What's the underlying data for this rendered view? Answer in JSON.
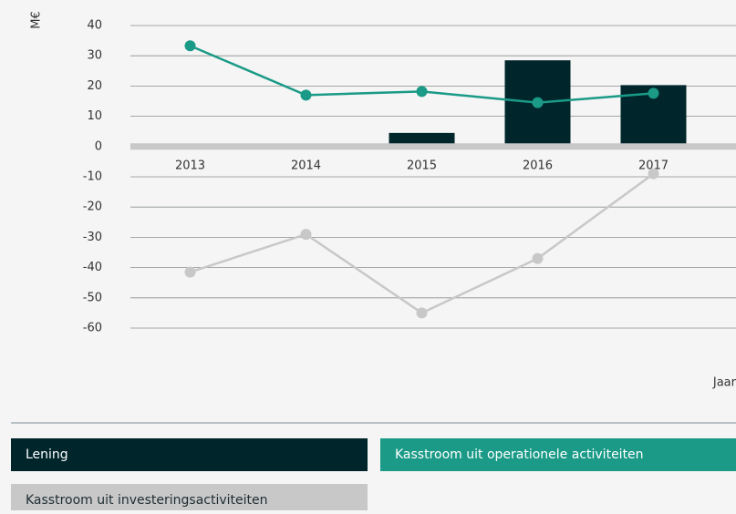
{
  "chart_data": {
    "type": "combo",
    "y_label": "M€",
    "x_label": "Jaar",
    "categories": [
      "2013",
      "2014",
      "2015",
      "2016",
      "2017"
    ],
    "ylim": [
      -60,
      40
    ],
    "yticks": [
      40,
      30,
      20,
      10,
      0,
      -10,
      -20,
      -30,
      -40,
      -50,
      -60
    ],
    "grid": true,
    "series": [
      {
        "name": "Lening",
        "type": "bar",
        "color": "#00262b",
        "values": [
          null,
          null,
          4.5,
          28.5,
          20.3
        ]
      },
      {
        "name": "Kasstroom uit operationele activiteiten",
        "type": "line",
        "color": "#1a9a87",
        "values": [
          33.3,
          17,
          18.2,
          14.5,
          17.6
        ]
      },
      {
        "name": "Kasstroom uit investeringsactiviteiten",
        "type": "line",
        "color": "#c8c8c8",
        "values": [
          -41.5,
          -29,
          -55,
          -37,
          -9
        ]
      }
    ]
  }
}
